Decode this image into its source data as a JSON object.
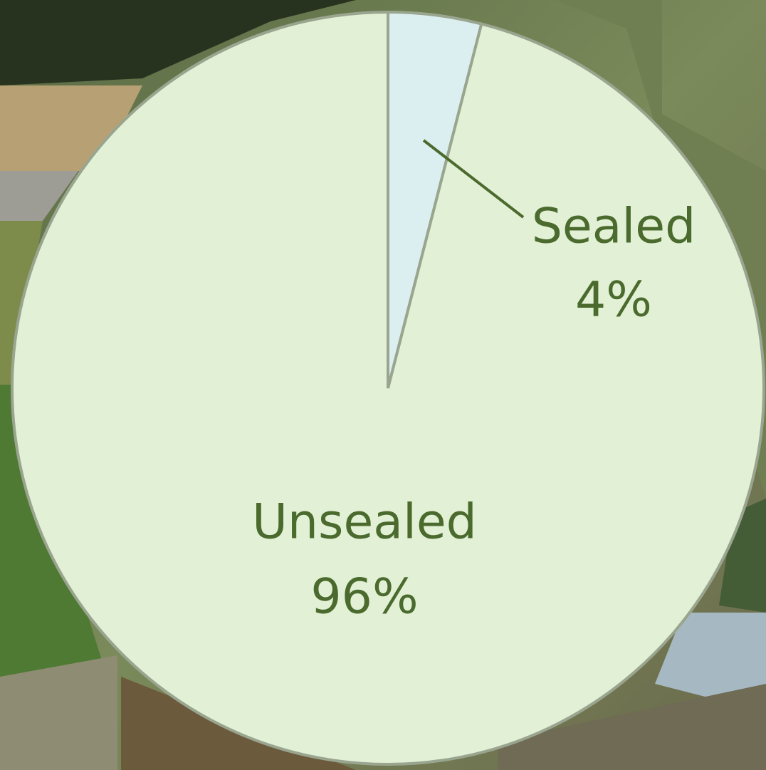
{
  "chart_data": {
    "type": "pie",
    "categories": [
      "Sealed",
      "Unsealed"
    ],
    "values": [
      4,
      96
    ],
    "value_labels": [
      "4%",
      "96%"
    ],
    "colors": [
      "#dbeff0",
      "#e2f0d6"
    ],
    "label_color": "#4b6a2d"
  }
}
